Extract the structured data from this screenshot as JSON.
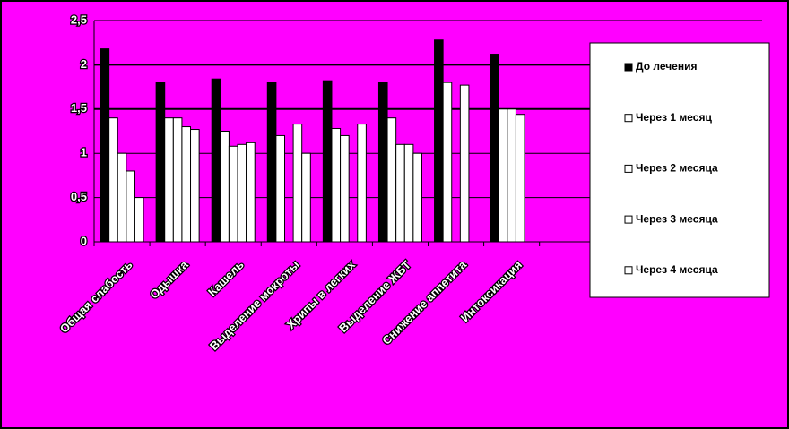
{
  "chart_data": {
    "type": "bar",
    "categories": [
      "Общая слабость",
      "Одышка",
      "Кашель",
      "Выделение мокроты",
      "Хрипы в легких",
      "Выделение ЖБТ",
      "Снижение аппетита",
      "Интоксикация",
      null,
      null,
      null,
      null
    ],
    "series": [
      {
        "name": "До лечения",
        "color": "#000000",
        "values": [
          2.18,
          1.8,
          1.84,
          1.8,
          1.82,
          1.8,
          2.28,
          2.12,
          null,
          null,
          null,
          null
        ]
      },
      {
        "name": "Через 1 месяц",
        "color": "#ffffff",
        "values": [
          1.4,
          1.4,
          1.25,
          1.2,
          1.28,
          1.4,
          1.8,
          1.5,
          null,
          null,
          null,
          null
        ]
      },
      {
        "name": "Через 2 месяца",
        "color": "#ffffff",
        "values": [
          1.0,
          1.4,
          1.08,
          null,
          1.2,
          1.1,
          null,
          1.5,
          null,
          null,
          null,
          null
        ]
      },
      {
        "name": "Через 3 месяца",
        "color": "#ffffff",
        "values": [
          0.8,
          1.3,
          1.1,
          1.33,
          null,
          1.1,
          1.77,
          1.44,
          null,
          null,
          null,
          null
        ]
      },
      {
        "name": "Через 4 месяца",
        "color": "#ffffff",
        "values": [
          0.5,
          1.27,
          1.12,
          1.0,
          1.33,
          1.0,
          null,
          null,
          null,
          null,
          null,
          null
        ]
      }
    ],
    "ylim": [
      0,
      2.5
    ],
    "yticks": [
      0,
      {
        "value": 0.5,
        "label": "0,5"
      },
      1,
      {
        "value": 1.5,
        "label": "1,5"
      },
      2,
      {
        "value": 2.5,
        "label": "2,5"
      }
    ],
    "grid": true,
    "legend": "right"
  }
}
